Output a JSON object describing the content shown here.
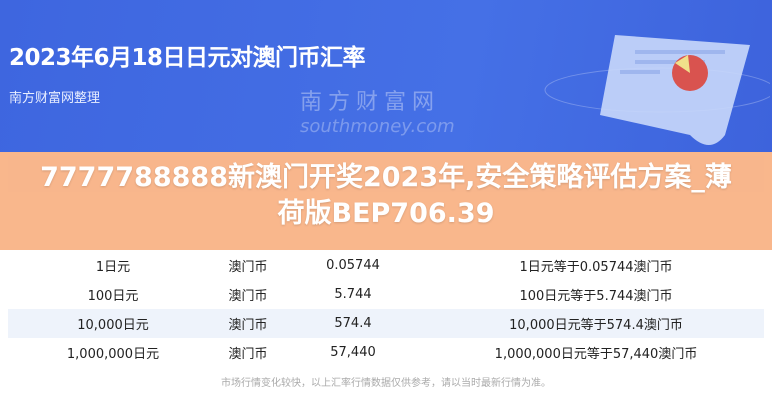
{
  "header": {
    "title": "2023年6月18日日元对澳门币汇率",
    "subtitle": "南方财富网整理"
  },
  "table": {
    "rows": [
      [
        "1日元",
        "澳门币",
        "0.05744",
        "1日元等于0.05744澳门币"
      ],
      [
        "100日元",
        "澳门币",
        "5.744",
        "100日元等于5.744澳门币"
      ],
      [
        "10,000日元",
        "澳门币",
        "574.4",
        "10,000日元等于574.4澳门币"
      ],
      [
        "1,000,000日元",
        "澳门币",
        "57,440",
        "1,000,000日元等于57,440澳门币"
      ]
    ]
  },
  "watermark": {
    "cn": "南方财富网",
    "en": "southmoney.com"
  },
  "footer": "市场行情变化较快，以上汇率行情数据仅供参考，请以当时最新行情为准。",
  "overlay": {
    "headline": "7777788888新澳门开奖2023年,安全策略评估方案_薄荷版BEP706.39"
  },
  "colors": {
    "header_bg": "#4169e1",
    "overlay": "#f8aa78",
    "row_alt": "#eef3fb"
  }
}
